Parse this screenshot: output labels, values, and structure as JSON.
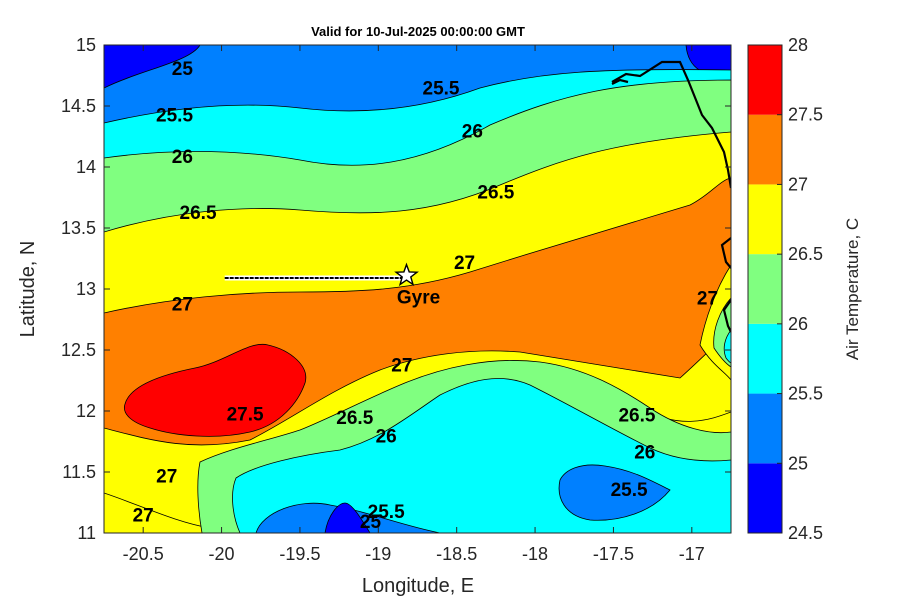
{
  "chart_data": {
    "type": "contour",
    "title": "Valid for 10-Jul-2025 00:00:00 GMT",
    "xlabel": "Longitude, E",
    "ylabel": "Latitude, N",
    "xlim": [
      -20.75,
      -16.75
    ],
    "ylim": [
      11,
      15
    ],
    "xticks": [
      -20.5,
      -20,
      -19.5,
      -19,
      -18.5,
      -18,
      -17.5,
      -17
    ],
    "yticks": [
      11,
      11.5,
      12,
      12.5,
      13,
      13.5,
      14,
      14.5,
      15
    ],
    "xtick_labels": [
      "-20.5",
      "-20",
      "-19.5",
      "-19",
      "-18.5",
      "-18",
      "-17.5",
      "-17"
    ],
    "ytick_labels": [
      "11",
      "11.5",
      "12",
      "12.5",
      "13",
      "13.5",
      "14",
      "14.5",
      "15"
    ],
    "colorbar": {
      "label": "Air Temperature, C",
      "levels": [
        24.5,
        25,
        25.5,
        26,
        26.5,
        27,
        27.5,
        28
      ],
      "tick_labels": [
        "24.5",
        "25",
        "25.5",
        "26",
        "26.5",
        "27",
        "27.5",
        "28"
      ],
      "colors": [
        "#0000ff",
        "#0080ff",
        "#00ffff",
        "#80ff80",
        "#ffff00",
        "#ff8000",
        "#ff0000",
        "#800000"
      ]
    },
    "contour_labels": [
      {
        "text": "25",
        "lon": -20.25,
        "lat": 14.81
      },
      {
        "text": "25.5",
        "lon": -20.3,
        "lat": 14.43
      },
      {
        "text": "26",
        "lon": -20.25,
        "lat": 14.09
      },
      {
        "text": "26.5",
        "lon": -20.15,
        "lat": 13.63
      },
      {
        "text": "27",
        "lon": -20.25,
        "lat": 12.88
      },
      {
        "text": "27.5",
        "lon": -19.85,
        "lat": 11.98
      },
      {
        "text": "27",
        "lon": -20.35,
        "lat": 11.47
      },
      {
        "text": "27",
        "lon": -20.5,
        "lat": 11.15
      },
      {
        "text": "25.5",
        "lon": -18.6,
        "lat": 14.65
      },
      {
        "text": "26",
        "lon": -18.4,
        "lat": 14.3
      },
      {
        "text": "26.5",
        "lon": -18.25,
        "lat": 13.8
      },
      {
        "text": "27",
        "lon": -18.45,
        "lat": 13.22
      },
      {
        "text": "27",
        "lon": -18.85,
        "lat": 12.38
      },
      {
        "text": "26.5",
        "lon": -19.15,
        "lat": 11.95
      },
      {
        "text": "26",
        "lon": -18.95,
        "lat": 11.8
      },
      {
        "text": "25",
        "lon": -19.05,
        "lat": 11.1
      },
      {
        "text": "25.5",
        "lon": -18.95,
        "lat": 11.18
      },
      {
        "text": "26.5",
        "lon": -17.35,
        "lat": 11.97
      },
      {
        "text": "26",
        "lon": -17.3,
        "lat": 11.67
      },
      {
        "text": "25.5",
        "lon": -17.4,
        "lat": 11.36
      },
      {
        "text": "27",
        "lon": -16.9,
        "lat": 12.93
      }
    ],
    "track": {
      "lon": [
        -19.98,
        -18.82
      ],
      "lat": [
        13.09,
        13.09
      ]
    },
    "point": {
      "label": "Gyre",
      "marker": "star",
      "lon": -18.82,
      "lat": 13.11
    }
  }
}
